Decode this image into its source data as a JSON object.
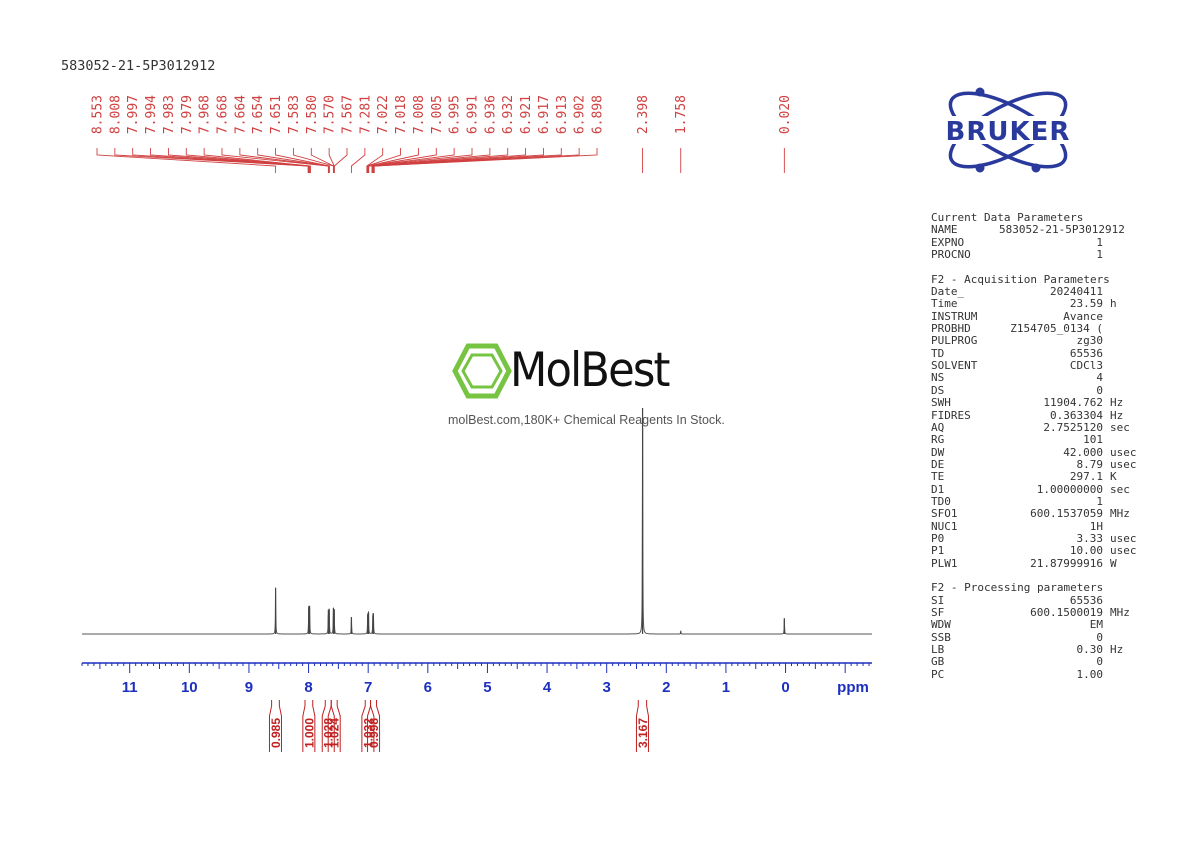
{
  "sample_name": "583052-21-5P3012912",
  "watermark": {
    "logo_text": "MolBest",
    "tagline": "molBest.com,180K+ Chemical Reagents In Stock."
  },
  "bruker_logo_text": "BRUKER",
  "colors": {
    "peak_labels": "#d04040",
    "integrals": "#c02020",
    "axis": "#1c2fbf",
    "spectrum": "#555555",
    "watermark_hexagon": "#76c442",
    "bruker_logo": "#2a3a9c"
  },
  "parameters": {
    "current": {
      "title": "Current Data Parameters",
      "rows": [
        {
          "key": "NAME",
          "value": "583052-21-5P3012912",
          "unit": ""
        },
        {
          "key": "EXPNO",
          "value": "1",
          "unit": ""
        },
        {
          "key": "PROCNO",
          "value": "1",
          "unit": ""
        }
      ]
    },
    "acquisition": {
      "title": "F2 - Acquisition Parameters",
      "rows": [
        {
          "key": "Date_",
          "value": "20240411",
          "unit": ""
        },
        {
          "key": "Time",
          "value": "23.59",
          "unit": "h"
        },
        {
          "key": "INSTRUM",
          "value": "Avance",
          "unit": ""
        },
        {
          "key": "PROBHD",
          "value": "Z154705_0134 (",
          "unit": ""
        },
        {
          "key": "PULPROG",
          "value": "zg30",
          "unit": ""
        },
        {
          "key": "TD",
          "value": "65536",
          "unit": ""
        },
        {
          "key": "SOLVENT",
          "value": "CDCl3",
          "unit": ""
        },
        {
          "key": "NS",
          "value": "4",
          "unit": ""
        },
        {
          "key": "DS",
          "value": "0",
          "unit": ""
        },
        {
          "key": "SWH",
          "value": "11904.762",
          "unit": "Hz"
        },
        {
          "key": "FIDRES",
          "value": "0.363304",
          "unit": "Hz"
        },
        {
          "key": "AQ",
          "value": "2.7525120",
          "unit": "sec"
        },
        {
          "key": "RG",
          "value": "101",
          "unit": ""
        },
        {
          "key": "DW",
          "value": "42.000",
          "unit": "usec"
        },
        {
          "key": "DE",
          "value": "8.79",
          "unit": "usec"
        },
        {
          "key": "TE",
          "value": "297.1",
          "unit": "K"
        },
        {
          "key": "D1",
          "value": "1.00000000",
          "unit": "sec"
        },
        {
          "key": "TD0",
          "value": "1",
          "unit": ""
        },
        {
          "key": "SFO1",
          "value": "600.1537059",
          "unit": "MHz"
        },
        {
          "key": "NUC1",
          "value": "1H",
          "unit": ""
        },
        {
          "key": "P0",
          "value": "3.33",
          "unit": "usec"
        },
        {
          "key": "P1",
          "value": "10.00",
          "unit": "usec"
        },
        {
          "key": "PLW1",
          "value": "21.87999916",
          "unit": "W"
        }
      ]
    },
    "processing": {
      "title": "F2 - Processing parameters",
      "rows": [
        {
          "key": "SI",
          "value": "65536",
          "unit": ""
        },
        {
          "key": "SF",
          "value": "600.1500019",
          "unit": "MHz"
        },
        {
          "key": "WDW",
          "value": "EM",
          "unit": ""
        },
        {
          "key": "SSB",
          "value": "0",
          "unit": ""
        },
        {
          "key": "LB",
          "value": "0.30",
          "unit": "Hz"
        },
        {
          "key": "GB",
          "value": "0",
          "unit": ""
        },
        {
          "key": "PC",
          "value": "1.00",
          "unit": ""
        }
      ]
    }
  },
  "chart_data": {
    "type": "line",
    "xlabel": "ppm",
    "x_reversed": true,
    "xlim": [
      11.8,
      -1.45
    ],
    "x_ticks": [
      11,
      10,
      9,
      8,
      7,
      6,
      5,
      4,
      3,
      2,
      1,
      0
    ],
    "peak_labels": [
      "8.553",
      "8.008",
      "7.997",
      "7.994",
      "7.983",
      "7.979",
      "7.968",
      "7.668",
      "7.664",
      "7.654",
      "7.651",
      "7.583",
      "7.580",
      "7.570",
      "7.567",
      "7.281",
      "7.022",
      "7.018",
      "7.008",
      "7.005",
      "6.995",
      "6.991",
      "6.936",
      "6.932",
      "6.921",
      "6.917",
      "6.913",
      "6.902",
      "6.898",
      "2.398",
      "1.758",
      "0.020"
    ],
    "peaks": [
      {
        "ppm": 8.553,
        "intensity": 0.205
      },
      {
        "ppm": 7.997,
        "intensity": 0.118
      },
      {
        "ppm": 7.983,
        "intensity": 0.125
      },
      {
        "ppm": 7.668,
        "intensity": 0.108
      },
      {
        "ppm": 7.654,
        "intensity": 0.112
      },
      {
        "ppm": 7.583,
        "intensity": 0.115
      },
      {
        "ppm": 7.57,
        "intensity": 0.11
      },
      {
        "ppm": 7.281,
        "intensity": 0.075
      },
      {
        "ppm": 7.008,
        "intensity": 0.085
      },
      {
        "ppm": 6.995,
        "intensity": 0.095
      },
      {
        "ppm": 6.921,
        "intensity": 0.082
      },
      {
        "ppm": 6.913,
        "intensity": 0.092
      },
      {
        "ppm": 2.398,
        "intensity": 1.0
      },
      {
        "ppm": 1.758,
        "intensity": 0.012
      },
      {
        "ppm": 0.02,
        "intensity": 0.07
      }
    ],
    "integrals": [
      {
        "label": "0.985",
        "from": 8.62,
        "to": 8.49
      },
      {
        "label": "1.000",
        "from": 8.06,
        "to": 7.93
      },
      {
        "label": "1.028",
        "from": 7.72,
        "to": 7.62
      },
      {
        "label": "1.024",
        "from": 7.62,
        "to": 7.52
      },
      {
        "label": "1.032",
        "from": 7.05,
        "to": 6.96
      },
      {
        "label": "0.998",
        "from": 6.96,
        "to": 6.86
      },
      {
        "label": "3.167",
        "from": 2.47,
        "to": 2.33
      }
    ]
  }
}
